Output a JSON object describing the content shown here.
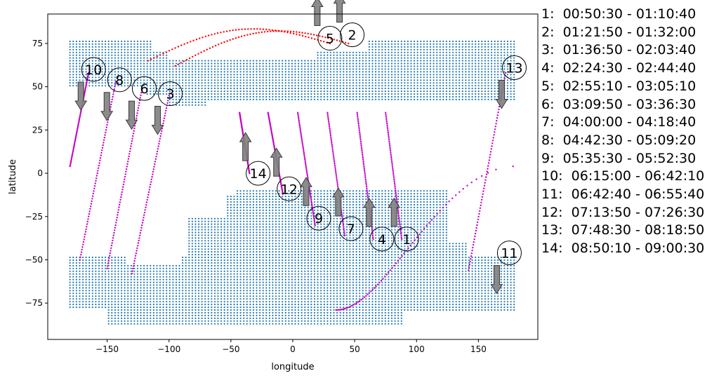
{
  "chart_data": {
    "type": "scatter",
    "xlabel": "longitude",
    "ylabel": "latitude",
    "xlim": [
      -198,
      198
    ],
    "ylim": [
      -96,
      92
    ],
    "x_ticks": [
      -150,
      -100,
      -50,
      0,
      50,
      100,
      150
    ],
    "y_ticks": [
      -75,
      -50,
      -25,
      0,
      25,
      50,
      75
    ],
    "grid": false,
    "colors": {
      "coverage_points": "#1f77b4",
      "pass_tracks": "#c400c4",
      "early_tracks": "#ff0000",
      "arrows": "#808080"
    },
    "coverage_regions": [
      {
        "name": "north",
        "lat_range": [
          38,
          77
        ],
        "lon_range": [
          -180,
          180
        ]
      },
      {
        "name": "south",
        "lat_range": [
          -87,
          -10
        ],
        "lon_range": [
          -180,
          180
        ]
      }
    ],
    "passes": [
      {
        "id": "1",
        "time": "00:50:30 - 01:10:40",
        "lon_start": 75,
        "lat_start": 35,
        "lon_end": 88,
        "lat_end": -38,
        "direction": "up",
        "label_lon": 92,
        "label_lat": -38
      },
      {
        "id": "2",
        "time": "01:21:50 - 01:32:00",
        "lon_start": -95,
        "lat_start": 62,
        "lon_end": 45,
        "lat_end": 75,
        "direction": "up",
        "label_lon": 48,
        "label_lat": 80
      },
      {
        "id": "3",
        "time": "01:36:50 - 02:03:40",
        "lon_start": -100,
        "lat_start": 45,
        "lon_end": -130,
        "lat_end": -58,
        "direction": "down",
        "label_lon": -99,
        "label_lat": 46
      },
      {
        "id": "4",
        "time": "02:24:30 - 02:44:40",
        "lon_start": 52,
        "lat_start": 35,
        "lon_end": 65,
        "lat_end": -38,
        "direction": "up",
        "label_lon": 72,
        "label_lat": -38
      },
      {
        "id": "5",
        "time": "02:55:10 - 03:05:10",
        "lon_start": -117,
        "lat_start": 65,
        "lon_end": 30,
        "lat_end": 75,
        "direction": "up",
        "label_lon": 30,
        "label_lat": 78
      },
      {
        "id": "6",
        "time": "03:09:50 - 03:36:30",
        "lon_start": -122,
        "lat_start": 48,
        "lon_end": -150,
        "lat_end": -55,
        "direction": "down",
        "label_lon": -120,
        "label_lat": 49
      },
      {
        "id": "7",
        "time": "04:00:00 - 04:18:40",
        "lon_start": 28,
        "lat_start": 35,
        "lon_end": 42,
        "lat_end": -36,
        "direction": "up",
        "label_lon": 47,
        "label_lat": -32
      },
      {
        "id": "8",
        "time": "04:42:30 - 05:09:20",
        "lon_start": -143,
        "lat_start": 53,
        "lon_end": -172,
        "lat_end": -50,
        "direction": "down",
        "label_lon": -140,
        "label_lat": 54
      },
      {
        "id": "9",
        "time": "05:35:30 - 05:52:30",
        "lon_start": 4,
        "lat_start": 35,
        "lon_end": 18,
        "lat_end": -30,
        "direction": "up",
        "label_lon": 21,
        "label_lat": -26
      },
      {
        "id": "10",
        "time": "06:15:00 - 06:42:10",
        "lon_start": -165,
        "lat_start": 58,
        "lon_end": -180,
        "lat_end": 4,
        "direction": "down",
        "label_lon": -161,
        "label_lat": 60
      },
      {
        "id": "11",
        "time": "06:42:40 - 06:55:40",
        "lon_start": 178,
        "lat_start": 4,
        "lon_end": 35,
        "lat_end": -79,
        "direction": "down",
        "label_lon": 175,
        "label_lat": -46
      },
      {
        "id": "12",
        "time": "07:13:50 - 07:26:30",
        "lon_start": -20,
        "lat_start": 35,
        "lon_end": -8,
        "lat_end": -12,
        "direction": "up",
        "label_lon": -3,
        "label_lat": -9
      },
      {
        "id": "13",
        "time": "07:48:30 - 08:18:50",
        "lon_start": 172,
        "lat_start": 58,
        "lon_end": 142,
        "lat_end": -56,
        "direction": "down",
        "label_lon": 179,
        "label_lat": 61
      },
      {
        "id": "14",
        "time": "08:50:10 - 09:00:30",
        "lon_start": -43,
        "lat_start": 35,
        "lon_end": -35,
        "lat_end": 0,
        "direction": "up",
        "label_lon": -28,
        "label_lat": 0
      }
    ],
    "legend_placement": "right"
  }
}
